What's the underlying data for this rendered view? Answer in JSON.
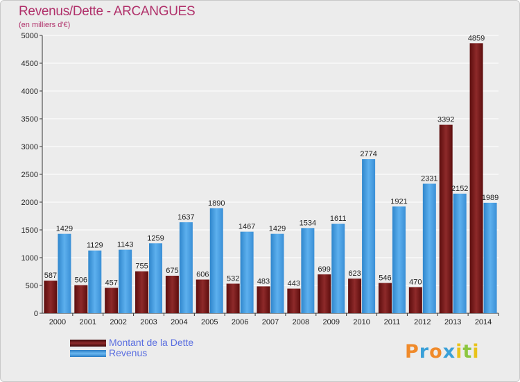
{
  "header": {
    "title": "Revenus/Dette - ARCANGUES",
    "subtitle": "(en milliers d'€)"
  },
  "chart_data": {
    "type": "bar",
    "title": "Revenus/Dette - ARCANGUES",
    "subtitle": "(en milliers d'€)",
    "categories": [
      "2000",
      "2001",
      "2002",
      "2003",
      "2004",
      "2005",
      "2006",
      "2007",
      "2008",
      "2009",
      "2010",
      "2011",
      "2012",
      "2013",
      "2014"
    ],
    "series": [
      {
        "name": "Montant de la Dette",
        "color": "#7a1a1a",
        "values": [
          587,
          506,
          457,
          755,
          675,
          606,
          532,
          483,
          443,
          699,
          623,
          546,
          470,
          3392,
          4859
        ]
      },
      {
        "name": "Revenus",
        "color": "#4a9fe0",
        "values": [
          1429,
          1129,
          1143,
          1259,
          1637,
          1890,
          1467,
          1429,
          1534,
          1611,
          2774,
          1921,
          2331,
          2152,
          1989
        ]
      }
    ],
    "yticks": [
      0,
      500,
      1000,
      1500,
      2000,
      2500,
      3000,
      3500,
      4000,
      4500,
      5000
    ],
    "ylim": [
      0,
      5000
    ],
    "grid": true,
    "legend_position": "bottom-left"
  },
  "legend": {
    "items": [
      {
        "label": "Montant de la Dette",
        "color": "#7a1a1a"
      },
      {
        "label": "Revenus",
        "color": "#4a9fe0"
      }
    ]
  },
  "logo": {
    "text": "Proxiti",
    "letters": [
      {
        "char": "P",
        "color": "#f08a2a"
      },
      {
        "char": "r",
        "color": "#3aa0d8"
      },
      {
        "char": "o",
        "color": "#f08a2a"
      },
      {
        "char": "x",
        "color": "#3aa0d8"
      },
      {
        "char": "i",
        "color": "#e9c21a"
      },
      {
        "char": "t",
        "color": "#8cc63f"
      },
      {
        "char": "i",
        "color": "#e9c21a"
      }
    ]
  }
}
